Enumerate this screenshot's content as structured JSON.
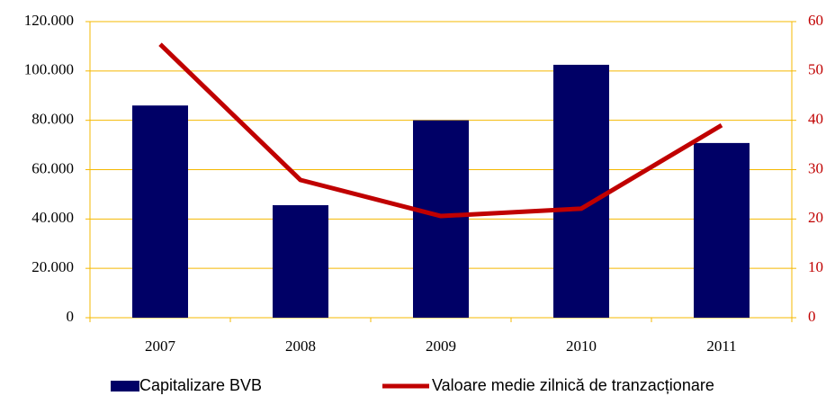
{
  "chart_data": {
    "type": "bar",
    "categories": [
      "2007",
      "2008",
      "2009",
      "2010",
      "2011"
    ],
    "series": [
      {
        "name": "Capitalizare BVB",
        "type": "bar",
        "color": "#000066",
        "values": [
          86000,
          45600,
          80000,
          102500,
          70800
        ]
      },
      {
        "name": "Valoare medie zilnică de tranzacționare",
        "type": "line",
        "axis": "y2",
        "color": "#c00000",
        "values": [
          55.4,
          27.9,
          20.6,
          22.1,
          39.0
        ]
      }
    ],
    "ylim": [
      0,
      120000
    ],
    "yticks": [
      0,
      {
        "value": 20000,
        "label": "20.000"
      },
      {
        "value": 40000,
        "label": "40.000"
      },
      {
        "value": 60000,
        "label": "60.000"
      },
      {
        "value": 80000,
        "label": "80.000"
      },
      {
        "value": 100000,
        "label": "100.000"
      },
      {
        "value": 120000,
        "label": "120.000"
      }
    ],
    "y2lim": [
      0,
      60
    ],
    "y2ticks": [
      0,
      10,
      20,
      30,
      40,
      50,
      60
    ],
    "grid": true,
    "legend": "bottom"
  }
}
